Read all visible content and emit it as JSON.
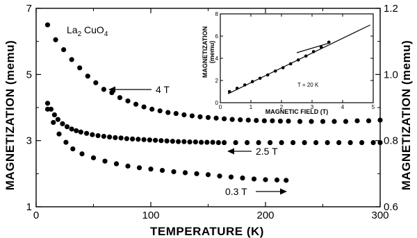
{
  "chart_data": [
    {
      "type": "scatter",
      "title": "",
      "compound": "La",
      "compound_sub1": "2",
      "compound_mid": " CuO",
      "compound_sub2": "4",
      "xlabel": "TEMPERATURE (K)",
      "ylabel": "MAGNETIZATION (memu)",
      "ylabel_right": "MAGNETIZATION (memu)",
      "xlim": [
        0,
        300
      ],
      "ylim": [
        1,
        7
      ],
      "ylim_right": [
        0.6,
        1.2
      ],
      "x_ticks": [
        "0",
        "100",
        "200",
        "300"
      ],
      "y_ticks": [
        "1",
        "3",
        "5",
        "7"
      ],
      "y_ticks_right": [
        "0.6",
        "0.8",
        "1.0",
        "1.2"
      ],
      "grid": false,
      "series": [
        {
          "name": "4 T",
          "axis": "left",
          "x": [
            10,
            17,
            24,
            31,
            38,
            45,
            52,
            59,
            66,
            73,
            80,
            87,
            94,
            101,
            108,
            115,
            122,
            129,
            136,
            143,
            150,
            157,
            164,
            171,
            178,
            185,
            192,
            199,
            206,
            213,
            220,
            230,
            240,
            250,
            260,
            270,
            280,
            290,
            300
          ],
          "y": [
            6.5,
            6.05,
            5.75,
            5.45,
            5.2,
            4.95,
            4.75,
            4.55,
            4.45,
            4.3,
            4.2,
            4.1,
            4.02,
            3.95,
            3.9,
            3.85,
            3.82,
            3.78,
            3.75,
            3.72,
            3.7,
            3.68,
            3.66,
            3.64,
            3.63,
            3.62,
            3.61,
            3.6,
            3.6,
            3.59,
            3.59,
            3.58,
            3.58,
            3.58,
            3.58,
            3.58,
            3.6,
            3.6,
            3.62
          ]
        },
        {
          "name": "2.5 T",
          "axis": "right",
          "x": [
            10,
            13,
            16,
            19,
            23,
            27,
            31,
            35,
            39,
            44,
            49,
            54,
            59,
            64,
            69,
            74,
            79,
            84,
            89,
            94,
            99,
            104,
            109,
            114,
            119,
            124,
            129,
            134,
            139,
            144,
            149,
            154,
            159,
            164,
            174,
            184,
            194,
            204,
            214,
            224,
            234,
            244,
            254,
            264,
            274,
            284,
            294,
            300
          ],
          "y": [
            0.913,
            0.895,
            0.878,
            0.864,
            0.851,
            0.842,
            0.835,
            0.83,
            0.826,
            0.822,
            0.818,
            0.815,
            0.813,
            0.811,
            0.809,
            0.808,
            0.806,
            0.805,
            0.804,
            0.803,
            0.802,
            0.801,
            0.8,
            0.799,
            0.798,
            0.797,
            0.797,
            0.796,
            0.796,
            0.795,
            0.795,
            0.795,
            0.794,
            0.794,
            0.794,
            0.794,
            0.794,
            0.794,
            0.794,
            0.794,
            0.794,
            0.794,
            0.794,
            0.794,
            0.794,
            0.794,
            0.794,
            0.794
          ]
        },
        {
          "name": "0.3 T",
          "axis": "left",
          "x": [
            10,
            15,
            20,
            26,
            32,
            40,
            50,
            60,
            70,
            80,
            90,
            100,
            110,
            120,
            130,
            140,
            150,
            160,
            170,
            180,
            190,
            200,
            210,
            218
          ],
          "y": [
            3.95,
            3.55,
            3.2,
            2.95,
            2.75,
            2.6,
            2.48,
            2.38,
            2.3,
            2.23,
            2.18,
            2.14,
            2.1,
            2.06,
            2.03,
            2.0,
            1.97,
            1.93,
            1.9,
            1.87,
            1.84,
            1.82,
            1.81,
            1.8
          ]
        }
      ],
      "annotations": [
        "4 T",
        "2.5 T",
        "0.3 T"
      ]
    },
    {
      "type": "scatter",
      "xlabel": "MAGNETIC FIELD (T)",
      "ylabel": "MAGNETIZATION",
      "ylabel_unit": "(memu)",
      "annotation": "T = 20 K",
      "xlim": [
        0,
        5
      ],
      "ylim": [
        0,
        8
      ],
      "x_ticks": [
        "0",
        "1",
        "2",
        "3",
        "4",
        "5"
      ],
      "y_ticks": [
        "0",
        "2",
        "4",
        "6",
        "8"
      ],
      "series": [
        {
          "x": [
            0.3,
            0.55,
            0.8,
            1.05,
            1.3,
            1.55,
            1.8,
            2.05,
            2.3,
            2.55,
            2.8,
            3.05,
            3.3,
            3.55
          ],
          "y": [
            1.0,
            1.3,
            1.6,
            1.9,
            2.2,
            2.5,
            2.85,
            3.15,
            3.5,
            3.85,
            4.2,
            4.6,
            5.0,
            5.45
          ]
        }
      ],
      "lines": [
        {
          "x": [
            0.25,
            4.9
          ],
          "y": [
            0.8,
            7.0
          ]
        },
        {
          "x": [
            2.5,
            3.6
          ],
          "y": [
            4.5,
            5.4
          ]
        }
      ]
    }
  ]
}
